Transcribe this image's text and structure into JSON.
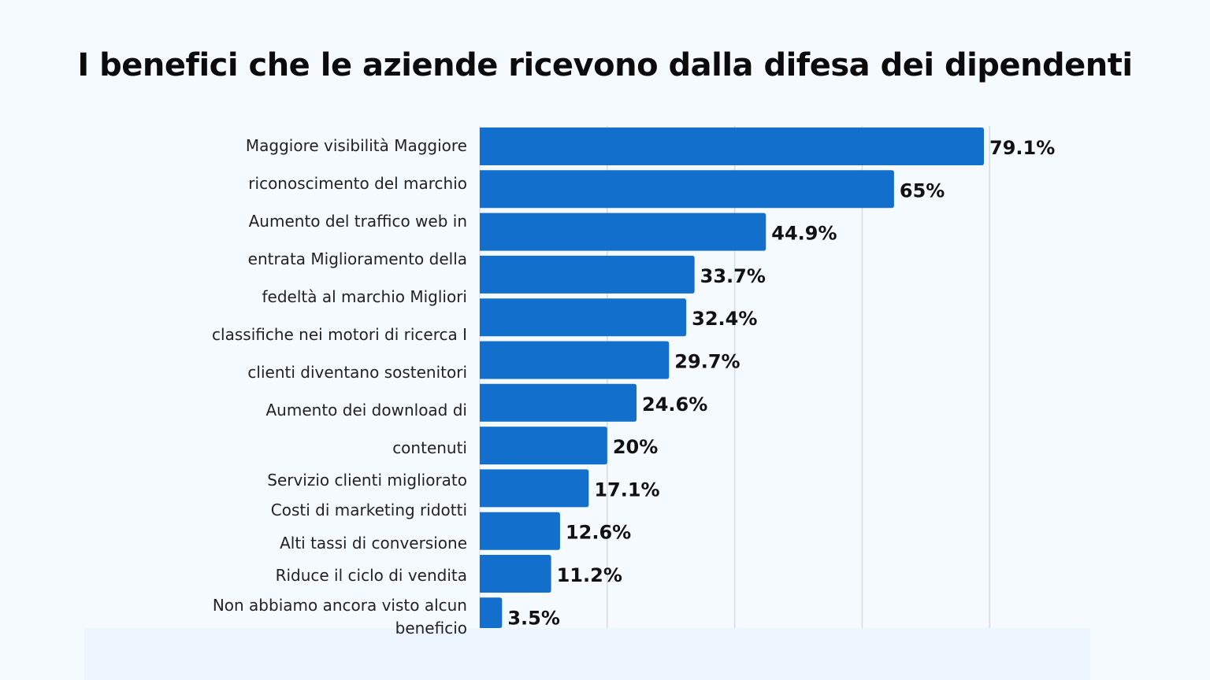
{
  "chart_data": {
    "type": "bar",
    "orientation": "horizontal",
    "title": "I benefici che le aziende ricevono dalla difesa dei dipendenti",
    "label_lines": [
      "Maggiore visibilità Maggiore",
      "riconoscimento del marchio",
      "Aumento del traffico web in",
      "entrata Miglioramento della",
      "fedeltà al marchio Migliori",
      "classifiche nei motori di ricerca I",
      "clienti diventano sostenitori",
      "Aumento dei download di",
      "contenuti",
      "Servizio clienti migliorato",
      "Costi di marketing ridotti",
      "Alti tassi di conversione",
      "Riduce il ciclo di vendita",
      "Non abbiamo ancora visto alcun",
      "beneficio"
    ],
    "values": [
      79.1,
      65,
      44.9,
      33.7,
      32.4,
      29.7,
      24.6,
      20,
      17.1,
      12.6,
      11.2,
      3.5
    ],
    "value_labels": [
      "79.1%",
      "65%",
      "44.9%",
      "33.7%",
      "32.4%",
      "29.7%",
      "24.6%",
      "20%",
      "17.1%",
      "12.6%",
      "11.2%",
      "3.5%"
    ],
    "xlim": [
      0,
      80
    ],
    "gridlines": [
      20,
      40,
      60,
      80
    ],
    "grid": true,
    "legend": false,
    "bar_color": "#1270cc"
  }
}
